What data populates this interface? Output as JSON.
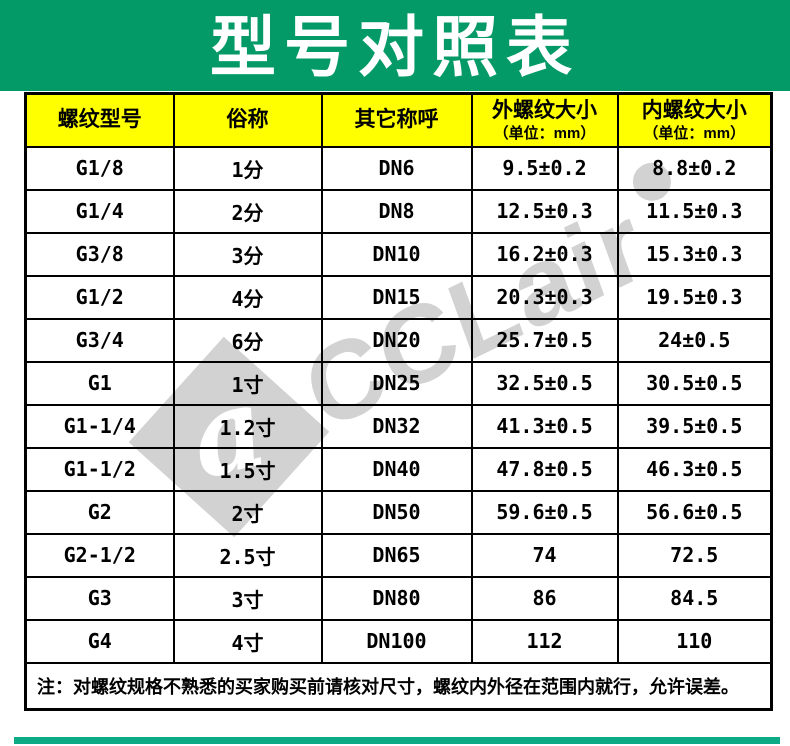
{
  "page": {
    "title": "型号对照表"
  },
  "watermark": {
    "brand": "CCLair",
    "logo_glyph": "a"
  },
  "table": {
    "columns": [
      {
        "label": "螺纹型号",
        "sub": ""
      },
      {
        "label": "俗称",
        "sub": ""
      },
      {
        "label": "其它称呼",
        "sub": ""
      },
      {
        "label": "外螺纹大小",
        "sub": "（单位：mm）"
      },
      {
        "label": "内螺纹大小",
        "sub": "（单位：mm）"
      }
    ],
    "rows": [
      [
        "G1/8",
        "1分",
        "DN6",
        "9.5±0.2",
        "8.8±0.2"
      ],
      [
        "G1/4",
        "2分",
        "DN8",
        "12.5±0.3",
        "11.5±0.3"
      ],
      [
        "G3/8",
        "3分",
        "DN10",
        "16.2±0.3",
        "15.3±0.3"
      ],
      [
        "G1/2",
        "4分",
        "DN15",
        "20.3±0.3",
        "19.5±0.3"
      ],
      [
        "G3/4",
        "6分",
        "DN20",
        "25.7±0.5",
        "24±0.5"
      ],
      [
        "G1",
        "1寸",
        "DN25",
        "32.5±0.5",
        "30.5±0.5"
      ],
      [
        "G1-1/4",
        "1.2寸",
        "DN32",
        "41.3±0.5",
        "39.5±0.5"
      ],
      [
        "G1-1/2",
        "1.5寸",
        "DN40",
        "47.8±0.5",
        "46.3±0.5"
      ],
      [
        "G2",
        "2寸",
        "DN50",
        "59.6±0.5",
        "56.6±0.5"
      ],
      [
        "G2-1/2",
        "2.5寸",
        "DN65",
        "74",
        "72.5"
      ],
      [
        "G3",
        "3寸",
        "DN80",
        "86",
        "84.5"
      ],
      [
        "G4",
        "4寸",
        "DN100",
        "112",
        "110"
      ]
    ],
    "note": "注：对螺纹规格不熟悉的买家购买前请核对尺寸，螺纹内外径在范围内就行，允许误差。"
  },
  "colors": {
    "banner_green": "#049a68",
    "header_yellow": "#ffff00",
    "accent_strip_teal": "#0caa85",
    "watermark_gray": "#d2d2d2"
  }
}
